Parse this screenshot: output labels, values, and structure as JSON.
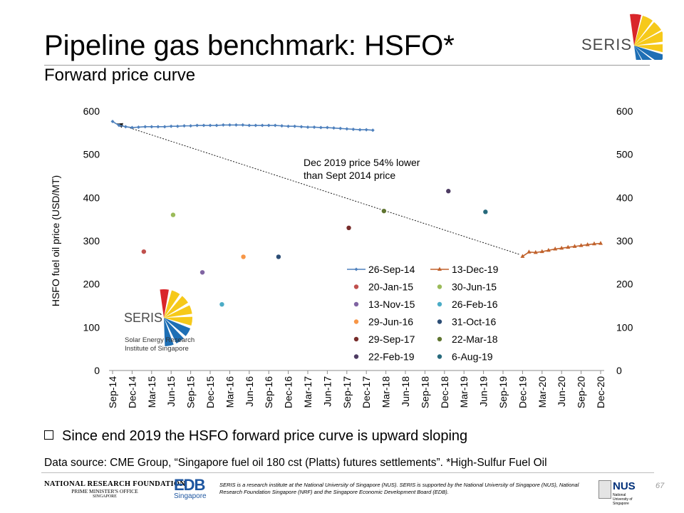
{
  "header": {
    "title": "Pipeline gas benchmark: HSFO*",
    "subtitle": "Forward price curve",
    "logo_text": "SERIS"
  },
  "chart_data": {
    "type": "line",
    "ylabel": "HSFO fuel oil price (USD/MT)",
    "ylim": [
      0,
      600
    ],
    "yticks": [
      0,
      100,
      200,
      300,
      400,
      500,
      600
    ],
    "categories": [
      "Sep-14",
      "Dec-14",
      "Mar-15",
      "Jun-15",
      "Sep-15",
      "Dec-15",
      "Mar-16",
      "Jun-16",
      "Sep-16",
      "Dec-16",
      "Mar-17",
      "Jun-17",
      "Sep-17",
      "Dec-17",
      "Mar-18",
      "Jun-18",
      "Sep-18",
      "Dec-18",
      "Mar-19",
      "Jun-19",
      "Sep-19",
      "Dec-19",
      "Mar-20",
      "Jun-20",
      "Sep-20",
      "Dec-20"
    ],
    "annotation": [
      "Dec 2019 price 54% lower",
      "than Sept 2014 price"
    ],
    "curves": [
      {
        "name": "26-Sep-14",
        "color": "#4f81bd",
        "marker": "diamond",
        "x": [
          0,
          0.33,
          0.67,
          1,
          1.33,
          1.67,
          2,
          2.33,
          2.67,
          3,
          3.33,
          3.67,
          4,
          4.33,
          4.67,
          5,
          5.33,
          5.67,
          6,
          6.33,
          6.67,
          7,
          7.33,
          7.67,
          8,
          8.33,
          8.67,
          9,
          9.33,
          9.67,
          10,
          10.33,
          10.67,
          11,
          11.33,
          11.67,
          12,
          12.33,
          12.67,
          13,
          13.33
        ],
        "y": [
          576,
          567,
          564,
          562,
          563,
          564,
          564,
          564,
          564,
          565,
          565,
          566,
          566,
          567,
          567,
          567,
          567,
          568,
          568,
          568,
          568,
          567,
          567,
          567,
          567,
          567,
          566,
          565,
          565,
          564,
          563,
          563,
          562,
          562,
          561,
          560,
          559,
          558,
          557,
          557,
          556
        ]
      },
      {
        "name": "13-Dec-19",
        "color": "#c0612b",
        "marker": "triangle",
        "x": [
          21,
          21.33,
          21.67,
          22,
          22.33,
          22.67,
          23,
          23.33,
          23.67,
          24,
          24.33,
          24.67,
          25
        ],
        "y": [
          264,
          274,
          273,
          275,
          278,
          281,
          283,
          285,
          287,
          289,
          291,
          293,
          294
        ]
      }
    ],
    "points": [
      {
        "name": "20-Jan-15",
        "color": "#c0504d",
        "x": 1.6,
        "y": 275
      },
      {
        "name": "30-Jun-15",
        "color": "#9bbb59",
        "x": 3.1,
        "y": 360
      },
      {
        "name": "13-Nov-15",
        "color": "#8064a2",
        "x": 4.6,
        "y": 227
      },
      {
        "name": "26-Feb-16",
        "color": "#4bacc6",
        "x": 5.6,
        "y": 153
      },
      {
        "name": "29-Jun-16",
        "color": "#f79646",
        "x": 6.7,
        "y": 263
      },
      {
        "name": "31-Oct-16",
        "color": "#2c4d75",
        "x": 8.5,
        "y": 263
      },
      {
        "name": "29-Sep-17",
        "color": "#772c2a",
        "x": 12.1,
        "y": 330
      },
      {
        "name": "22-Mar-18",
        "color": "#5f7530",
        "x": 13.9,
        "y": 369
      },
      {
        "name": "22-Feb-19",
        "color": "#4d3b62",
        "x": 17.2,
        "y": 415
      },
      {
        "name": "6-Aug-19",
        "color": "#276a7c",
        "x": 19.1,
        "y": 367
      }
    ],
    "legend": [
      "26-Sep-14",
      "13-Dec-19",
      "20-Jan-15",
      "30-Jun-15",
      "13-Nov-15",
      "26-Feb-16",
      "29-Jun-16",
      "31-Oct-16",
      "29-Sep-17",
      "22-Mar-18",
      "22-Feb-19",
      "6-Aug-19"
    ],
    "inner_logo": {
      "name": "SERIS",
      "line1": "Solar Energy Research",
      "line2": "Institute of Singapore"
    }
  },
  "bullet": "Since end 2019 the HSFO forward price curve is upward sloping",
  "source": "Data source: CME Group, “Singapore fuel oil 180 cst (Platts) futures settlements”. *High-Sulfur Fuel Oil",
  "footer": {
    "nrf_line1": "NATIONAL RESEARCH FOUNDATION",
    "nrf_line2": "PRIME MINISTER'S OFFICE",
    "nrf_line3": "SINGAPORE",
    "edb_main": "EDB",
    "edb_sub": "Singapore",
    "disclaimer": "SERIS is a research institute at the National University of Singapore (NUS). SERIS is supported by the National University of Singapore (NUS), National Research Foundation Singapore (NRF) and the Singapore Economic Development Board (EDB).",
    "nus_main": "NUS",
    "nus_sub": "National University of Singapore",
    "page_number": "67"
  }
}
